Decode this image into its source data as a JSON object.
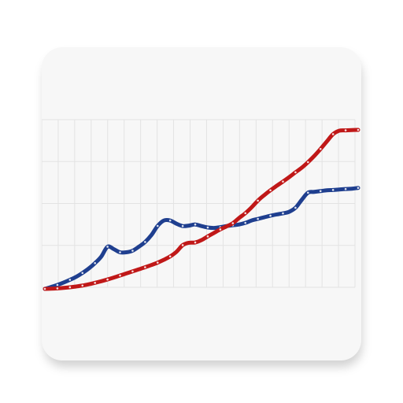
{
  "app_icon": {
    "icon": "line-chart-icon",
    "background_color": "#f7f7f7",
    "grid_color": "#e3e3e3"
  },
  "chart_data": {
    "type": "line",
    "title": "",
    "xlabel": "",
    "ylabel": "",
    "grid": true,
    "x": [
      0,
      1,
      2,
      3,
      4,
      5,
      6,
      7,
      8,
      9,
      10,
      11,
      12,
      13,
      14,
      15,
      16,
      17,
      18,
      19,
      20,
      21,
      22,
      23,
      24,
      25,
      26,
      27,
      28,
      29,
      30,
      31,
      32,
      33,
      34,
      35,
      36,
      37,
      38,
      39,
      40,
      41,
      42,
      43,
      44,
      45,
      46,
      47,
      48,
      49,
      50
    ],
    "xlim": [
      0,
      50
    ],
    "ylim": [
      0,
      100
    ],
    "series": [
      {
        "color": "#1f3f8f",
        "values": [
          0,
          1.2,
          2.5,
          4,
          5.7,
          7.6,
          10,
          12.8,
          16.2,
          20.3,
          26.5,
          25,
          23,
          23,
          24,
          26.5,
          29.5,
          33.8,
          39.6,
          43,
          43,
          41,
          39.5,
          39.8,
          40.5,
          39.5,
          38.6,
          38.3,
          38.8,
          39.5,
          40,
          40.5,
          41.5,
          43,
          44,
          45,
          46,
          46.8,
          47.5,
          48.5,
          51,
          56,
          60.5,
          61,
          61.5,
          62,
          62.2,
          62.5,
          62.8,
          63,
          63.5
        ]
      },
      {
        "color": "#c01818",
        "values": [
          0,
          0.1,
          0.3,
          0.6,
          1,
          1.5,
          2.1,
          2.9,
          3.8,
          4.8,
          5.9,
          7.1,
          8.4,
          9.7,
          11,
          12.3,
          13.6,
          15,
          16.5,
          18.3,
          20.4,
          23.3,
          27.5,
          29,
          29.2,
          30.7,
          33,
          35.2,
          37.4,
          39.3,
          41.3,
          44.6,
          47.6,
          51.3,
          55.5,
          58.9,
          62,
          64.8,
          67.5,
          70.3,
          73.3,
          76.2,
          79.7,
          83.6,
          88,
          92.7,
          97.3,
          99.5,
          99.7,
          99.9,
          100
        ]
      }
    ]
  }
}
